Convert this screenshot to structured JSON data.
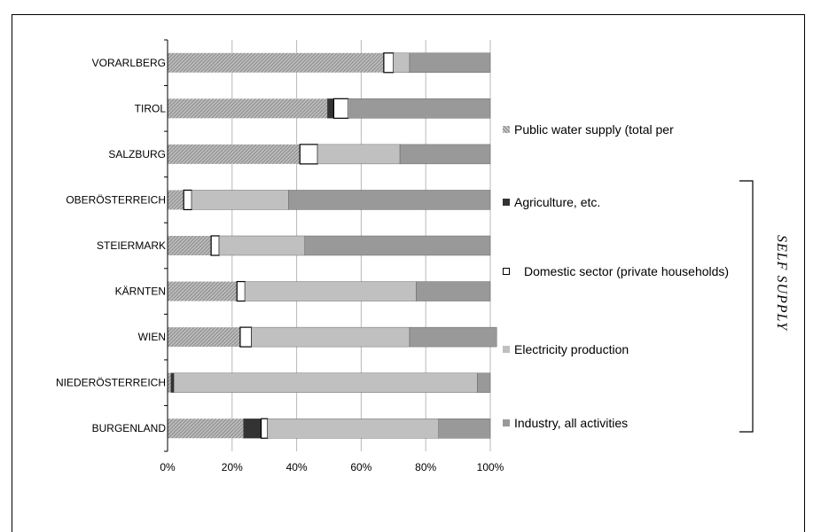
{
  "chart_data": {
    "type": "bar",
    "orientation": "horizontal",
    "stacked": "percent",
    "categories": [
      "VORARLBERG",
      "TIROL",
      "SALZBURG",
      "OBERÖSTERREICH",
      "STEIERMARK",
      "KÄRNTEN",
      "WIEN",
      "NIEDERÖSTERREICH",
      "BURGENLAND"
    ],
    "series": [
      {
        "name": "Public water supply (total per",
        "values": [
          67,
          49.5,
          41,
          5,
          13.5,
          21.5,
          22.5,
          1,
          23.5
        ],
        "color": "#b0b0b0",
        "pattern": "hatch"
      },
      {
        "name": "Agriculture, etc.",
        "values": [
          0,
          2,
          0,
          0,
          0,
          0,
          0,
          1,
          5.5
        ],
        "color": "#333333"
      },
      {
        "name": "Domestic sector (private households)",
        "values": [
          3,
          4.5,
          5.5,
          2.5,
          2.5,
          2.5,
          3.5,
          0,
          2
        ],
        "color": "#ffffff"
      },
      {
        "name": "Electricity production",
        "values": [
          5,
          0.5,
          25.5,
          30,
          26.5,
          53,
          49,
          94,
          53
        ],
        "color": "#c0c0c0"
      },
      {
        "name": "Industry, all activities",
        "values": [
          25,
          43.5,
          28,
          62.5,
          57.5,
          23,
          27,
          4,
          16
        ],
        "color": "#999999"
      }
    ],
    "x_ticks": [
      "0%",
      "20%",
      "40%",
      "60%",
      "80%",
      "100%"
    ],
    "xlim": [
      0,
      100
    ],
    "grid": true,
    "legend_position": "right",
    "bracket_label": "SELF SUPPLY"
  }
}
